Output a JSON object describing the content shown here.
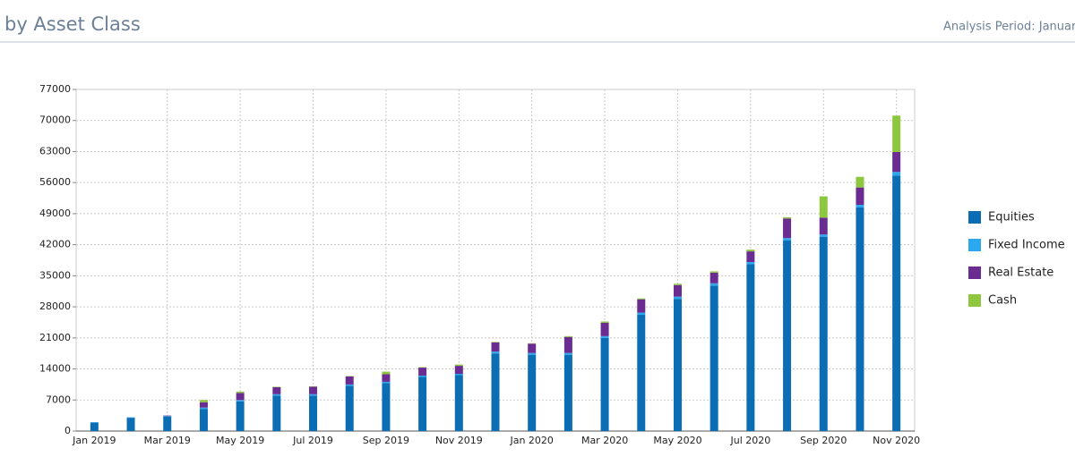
{
  "chart_data": {
    "type": "stacked-bar",
    "title": "by Asset Class",
    "subtitle": "Analysis Period: January",
    "categories": [
      "Jan 2019",
      null,
      "Mar 2019",
      null,
      "May 2019",
      null,
      "Jul 2019",
      null,
      "Sep 2019",
      null,
      "Nov 2019",
      null,
      "Jan 2020",
      null,
      "Mar 2020",
      null,
      "May 2020",
      null,
      "Jul 2020",
      null,
      "Sep 2020",
      null,
      "Nov 2020"
    ],
    "series": [
      {
        "name": "Equities",
        "color": "#0b6db4",
        "values": [
          1900,
          3000,
          3300,
          5000,
          6700,
          8000,
          8000,
          10200,
          10800,
          12200,
          12600,
          17500,
          17200,
          17200,
          21000,
          26200,
          29800,
          32800,
          37600,
          43000,
          43800,
          50400,
          57600
        ]
      },
      {
        "name": "Fixed Income",
        "color": "#2ba8ef",
        "values": [
          100,
          100,
          100,
          300,
          300,
          300,
          300,
          300,
          300,
          300,
          300,
          400,
          400,
          400,
          400,
          500,
          500,
          500,
          500,
          500,
          500,
          600,
          800
        ]
      },
      {
        "name": "Real Estate",
        "color": "#6a2c91",
        "values": [
          0,
          0,
          100,
          1200,
          1600,
          1600,
          1700,
          1800,
          1700,
          1800,
          1800,
          2100,
          2100,
          3600,
          3000,
          3000,
          2600,
          2400,
          2400,
          4400,
          3800,
          3900,
          4500
        ]
      },
      {
        "name": "Cash",
        "color": "#8dc63f",
        "values": [
          0,
          0,
          0,
          500,
          300,
          100,
          100,
          100,
          600,
          100,
          300,
          100,
          100,
          200,
          300,
          200,
          300,
          300,
          400,
          300,
          4800,
          2400,
          8200
        ]
      }
    ],
    "ylim": [
      0,
      77000
    ],
    "yticks": [
      0,
      7000,
      14000,
      21000,
      28000,
      35000,
      42000,
      49000,
      56000,
      63000,
      70000,
      77000
    ],
    "grid": true,
    "legend": "right"
  }
}
